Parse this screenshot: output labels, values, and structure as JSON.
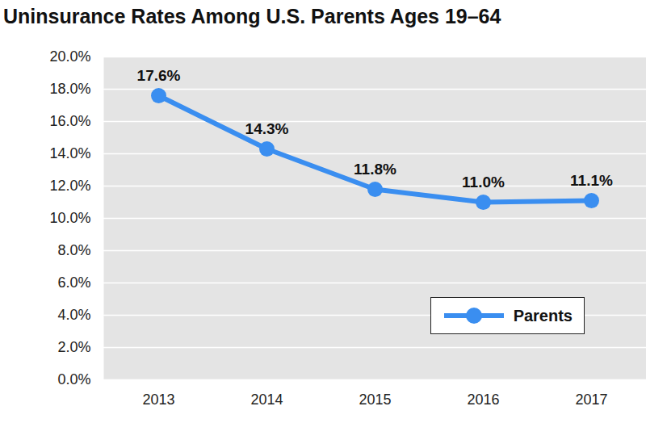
{
  "chart_data": {
    "type": "line",
    "title": "Uninsurance Rates Among U.S. Parents Ages 19–64",
    "categories": [
      "2013",
      "2014",
      "2015",
      "2016",
      "2017"
    ],
    "series": [
      {
        "name": "Parents",
        "color": "#3a8ef0",
        "marker": "circle",
        "values": [
          17.6,
          14.3,
          11.8,
          11.0,
          11.1
        ],
        "value_labels": [
          "17.6%",
          "14.3%",
          "11.8%",
          "11.0%",
          "11.1%"
        ]
      }
    ],
    "ylim": [
      0,
      20
    ],
    "yticks": [
      {
        "value": 0,
        "label": "0.0%"
      },
      {
        "value": 2,
        "label": "2.0%"
      },
      {
        "value": 4,
        "label": "4.0%"
      },
      {
        "value": 6,
        "label": "6.0%"
      },
      {
        "value": 8,
        "label": "8.0%"
      },
      {
        "value": 10,
        "label": "10.0%"
      },
      {
        "value": 12,
        "label": "12.0%"
      },
      {
        "value": 14,
        "label": "14.0%"
      },
      {
        "value": 16,
        "label": "16.0%"
      },
      {
        "value": 18,
        "label": "18.0%"
      },
      {
        "value": 20,
        "label": "20.0%"
      }
    ],
    "grid": true,
    "legend": "lower right",
    "data_labels": true
  }
}
